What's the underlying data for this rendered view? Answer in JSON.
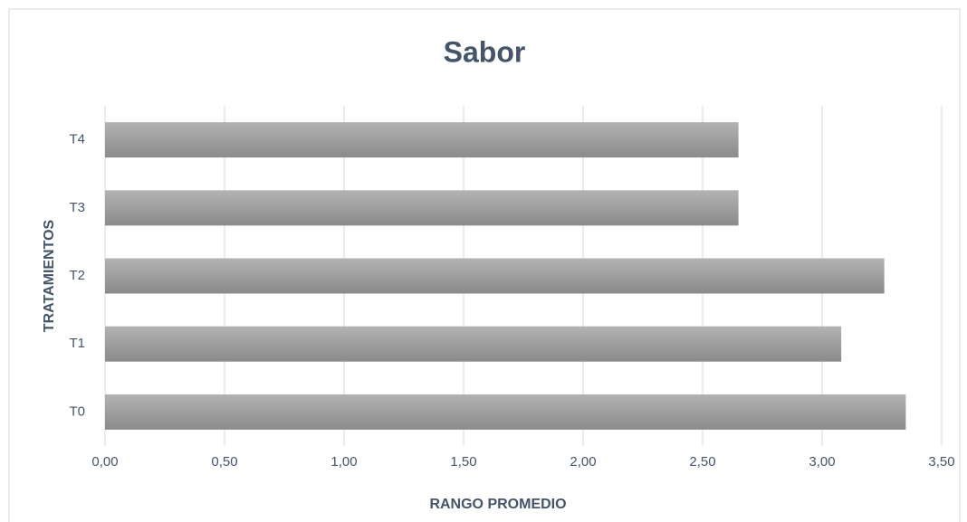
{
  "chart_data": {
    "type": "bar",
    "orientation": "horizontal",
    "title": "Sabor",
    "x_label": "RANGO PROMEDIO",
    "y_label": "TRATAMIENTOS",
    "categories": [
      "T0",
      "T1",
      "T2",
      "T3",
      "T4"
    ],
    "values": [
      3.35,
      3.08,
      3.26,
      2.65,
      2.65
    ],
    "color": "#9a9a9a",
    "xlim": [
      0,
      3.5
    ],
    "xticks": [
      {
        "value": 0,
        "label": "0,00"
      },
      {
        "value": 0.5,
        "label": "0,50"
      },
      {
        "value": 1,
        "label": "1,00"
      },
      {
        "value": 1.5,
        "label": "1,50"
      },
      {
        "value": 2,
        "label": "2,00"
      },
      {
        "value": 2.5,
        "label": "2,50"
      },
      {
        "value": 3,
        "label": "3,00"
      },
      {
        "value": 3.5,
        "label": "3,50"
      }
    ],
    "grid": true
  }
}
